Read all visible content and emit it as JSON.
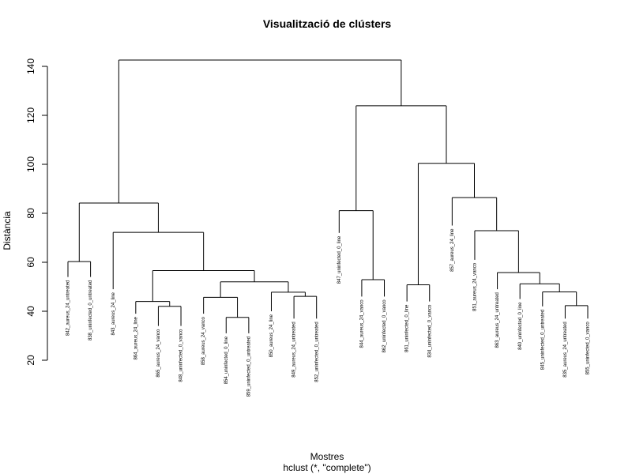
{
  "chart_data": {
    "type": "dendrogram",
    "title": "Visualització de clústers",
    "xlabel": "Mostres",
    "subtitle": "hclust (*, \"complete\")",
    "ylabel": "Distància",
    "ylim": [
      20,
      148
    ],
    "yticks": [
      20,
      40,
      60,
      80,
      100,
      120,
      140
    ],
    "leaves": [
      {
        "label": "842_aureus_24_untreated",
        "top": 54
      },
      {
        "label": "838_uninfected_0_untreated",
        "top": 54
      },
      {
        "label": "843_aureus_24_line",
        "top": 49
      },
      {
        "label": "864_aureus_24_line",
        "top": 39
      },
      {
        "label": "865_aureus_24_vanco",
        "top": 34
      },
      {
        "label": "848_uninfected_0_vanco",
        "top": 34
      },
      {
        "label": "858_aureus_24_vanco",
        "top": 39
      },
      {
        "label": "854_uninfected_0_line",
        "top": 31
      },
      {
        "label": "859_uninfected_0_untreated",
        "top": 31
      },
      {
        "label": "850_aureus_24_line",
        "top": 40
      },
      {
        "label": "849_aureus_24_untreated",
        "top": 37
      },
      {
        "label": "852_uninfected_0_untreated",
        "top": 37
      },
      {
        "label": "847_uninfected_0_line",
        "top": 72
      },
      {
        "label": "844_aureus_24_vanco",
        "top": 46
      },
      {
        "label": "862_uninfected_0_vanco",
        "top": 46
      },
      {
        "label": "861_uninfected_0_line",
        "top": 44
      },
      {
        "label": "834_uninfected_0_vanco",
        "top": 44
      },
      {
        "label": "857_aureus_24_line",
        "top": 75
      },
      {
        "label": "851_aureus_24_vanco",
        "top": 61
      },
      {
        "label": "863_aureus_24_untreated",
        "top": 49
      },
      {
        "label": "840_uninfected_0_line",
        "top": 45
      },
      {
        "label": "845_uninfected_0_untreated",
        "top": 42
      },
      {
        "label": "835_aureus_24_untreated",
        "top": 37
      },
      {
        "label": "855_uninfected_0_vanco",
        "top": 37
      }
    ],
    "merges": [
      {
        "left": "L1",
        "right": "L2",
        "height": 60.3
      },
      {
        "left": "L5",
        "right": "L6",
        "height": 42.0
      },
      {
        "left": "L4",
        "right": "M2",
        "height": 44.0
      },
      {
        "left": "L8",
        "right": "L9",
        "height": 37.5
      },
      {
        "left": "L7",
        "right": "M4",
        "height": 45.7
      },
      {
        "left": "L11",
        "right": "L12",
        "height": 46.1
      },
      {
        "left": "L10",
        "right": "M6",
        "height": 47.8
      },
      {
        "left": "M5",
        "right": "M7",
        "height": 52.0
      },
      {
        "left": "M3",
        "right": "M8",
        "height": 56.6
      },
      {
        "left": "L3",
        "right": "M9",
        "height": 72.2
      },
      {
        "left": "M1",
        "right": "M10",
        "height": 84.2
      },
      {
        "left": "L14",
        "right": "L15",
        "height": 52.9
      },
      {
        "left": "L13",
        "right": "M12",
        "height": 81.1
      },
      {
        "left": "L16",
        "right": "L17",
        "height": 50.8
      },
      {
        "left": "L23",
        "right": "L24",
        "height": 42.3
      },
      {
        "left": "L22",
        "right": "M15",
        "height": 47.9
      },
      {
        "left": "L21",
        "right": "M16",
        "height": 51.2
      },
      {
        "left": "L20",
        "right": "M17",
        "height": 55.8
      },
      {
        "left": "L19",
        "right": "M18",
        "height": 72.9
      },
      {
        "left": "L18",
        "right": "M19",
        "height": 86.4
      },
      {
        "left": "M14",
        "right": "M20",
        "height": 100.4
      },
      {
        "left": "M13",
        "right": "M21",
        "height": 123.9
      },
      {
        "left": "M11",
        "right": "M22",
        "height": 142.6
      }
    ]
  }
}
